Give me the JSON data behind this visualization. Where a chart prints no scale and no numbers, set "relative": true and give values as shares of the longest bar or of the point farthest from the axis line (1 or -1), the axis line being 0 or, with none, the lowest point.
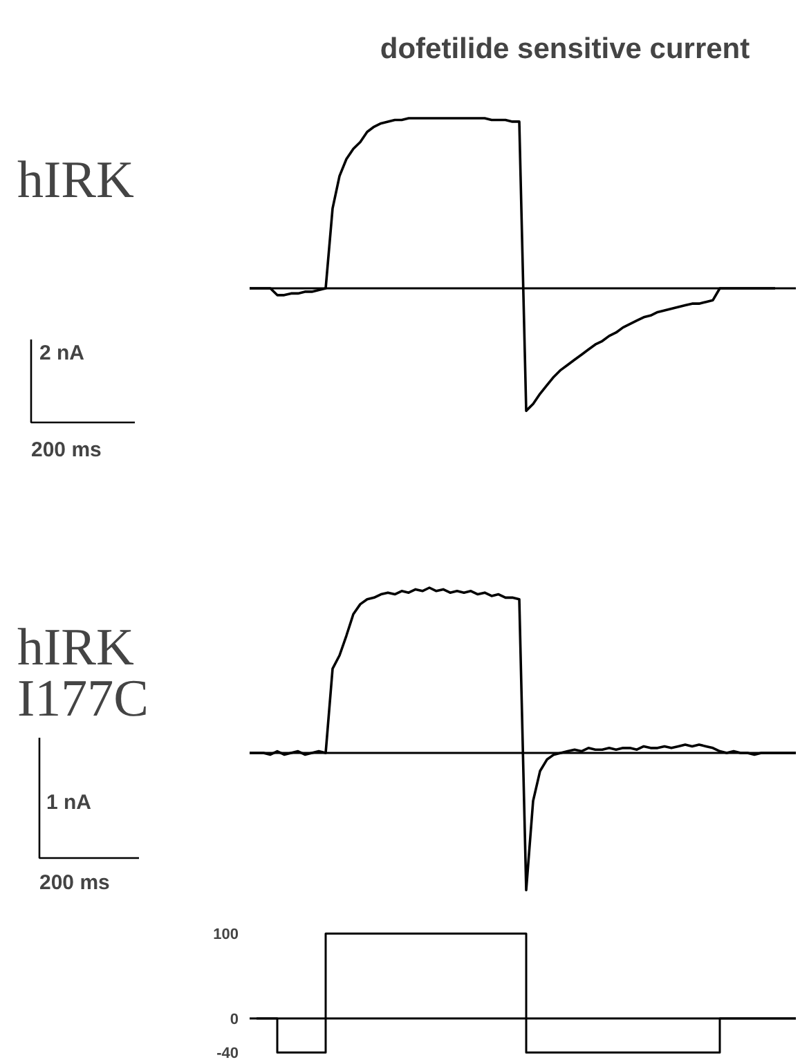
{
  "chart_data": [
    {
      "type": "line",
      "title": "dofetilide sensitive current",
      "ylabel": "hIRK",
      "relative": true,
      "annotations": [
        "2 nA",
        "200 ms"
      ],
      "categories": [
        null,
        null,
        null,
        null,
        null,
        null,
        null,
        null,
        null,
        null,
        null,
        null,
        null,
        null,
        null,
        null,
        null,
        null,
        null,
        null,
        null,
        null,
        null,
        null,
        null,
        null,
        null,
        null,
        null,
        null,
        null,
        null,
        null,
        null,
        null,
        null,
        null,
        null,
        null,
        null,
        null,
        null,
        null,
        null,
        null,
        null,
        null,
        null,
        null,
        null,
        null,
        null,
        null,
        null,
        null,
        null,
        null,
        null,
        null,
        null,
        null,
        null,
        null,
        null,
        null,
        null,
        null,
        null,
        null,
        null,
        null,
        null,
        null,
        null,
        null,
        null,
        null,
        null,
        null,
        null
      ],
      "series": [
        {
          "color": "#000000",
          "values": [
            0,
            0,
            0,
            0,
            -0.04,
            -0.04,
            -0.03,
            -0.03,
            -0.02,
            -0.02,
            -0.01,
            0,
            0.47,
            0.66,
            0.76,
            0.82,
            0.86,
            0.92,
            0.95,
            0.97,
            0.98,
            0.99,
            0.99,
            1.0,
            1.0,
            1.0,
            1.0,
            1.0,
            1.0,
            1.0,
            1.0,
            1.0,
            1.0,
            1.0,
            1.0,
            0.99,
            0.99,
            0.99,
            0.98,
            0.98,
            -0.72,
            -0.68,
            -0.62,
            -0.57,
            -0.52,
            -0.48,
            -0.45,
            -0.42,
            -0.39,
            -0.36,
            -0.33,
            -0.31,
            -0.28,
            -0.26,
            -0.23,
            -0.21,
            -0.19,
            -0.17,
            -0.16,
            -0.14,
            -0.13,
            -0.12,
            -0.11,
            -0.1,
            -0.09,
            -0.09,
            -0.08,
            -0.07,
            0,
            0,
            0,
            0,
            0,
            0,
            0,
            0,
            0,
            null,
            null,
            null
          ]
        }
      ]
    },
    {
      "type": "line",
      "ylabel": "hIRK I177C",
      "relative": true,
      "annotations": [
        "1 nA",
        "200 ms"
      ],
      "categories": [
        null,
        null,
        null,
        null,
        null,
        null,
        null,
        null,
        null,
        null,
        null,
        null,
        null,
        null,
        null,
        null,
        null,
        null,
        null,
        null,
        null,
        null,
        null,
        null,
        null,
        null,
        null,
        null,
        null,
        null,
        null,
        null,
        null,
        null,
        null,
        null,
        null,
        null,
        null,
        null,
        null,
        null,
        null,
        null,
        null,
        null,
        null,
        null,
        null,
        null,
        null,
        null,
        null,
        null,
        null,
        null,
        null,
        null,
        null,
        null,
        null,
        null,
        null,
        null,
        null,
        null,
        null,
        null,
        null,
        null,
        null,
        null,
        null,
        null,
        null,
        null,
        null,
        null,
        null,
        null
      ],
      "series": [
        {
          "color": "#000000",
          "values": [
            0,
            0,
            0,
            -0.01,
            0.01,
            -0.01,
            0,
            0.01,
            -0.01,
            0,
            0.01,
            0,
            0.51,
            0.59,
            0.71,
            0.84,
            0.9,
            0.93,
            0.94,
            0.96,
            0.97,
            0.96,
            0.98,
            0.97,
            0.99,
            0.98,
            1.0,
            0.98,
            0.99,
            0.97,
            0.98,
            0.97,
            0.98,
            0.96,
            0.97,
            0.95,
            0.96,
            0.94,
            0.94,
            0.93,
            -0.83,
            -0.29,
            -0.11,
            -0.04,
            -0.01,
            0,
            0.01,
            0.02,
            0.01,
            0.03,
            0.02,
            0.02,
            0.03,
            0.02,
            0.03,
            0.03,
            0.02,
            0.04,
            0.03,
            0.03,
            0.04,
            0.03,
            0.04,
            0.05,
            0.04,
            0.05,
            0.04,
            0.03,
            0.01,
            0,
            0.01,
            0,
            0,
            -0.01,
            0,
            0,
            0,
            0,
            0,
            0
          ]
        }
      ]
    },
    {
      "type": "step",
      "ylim": [
        -52,
        140
      ],
      "yticks": [
        100,
        0,
        -40
      ],
      "categories": [
        null,
        null,
        null,
        null,
        null,
        null,
        null,
        null,
        null,
        null,
        null,
        null,
        null,
        null,
        null,
        null,
        null,
        null,
        null,
        null,
        null,
        null,
        null,
        null,
        null,
        null,
        null,
        null,
        null,
        null,
        null,
        null,
        null,
        null,
        null,
        null,
        null,
        null,
        null,
        null,
        null,
        null,
        null,
        null,
        null,
        null,
        null,
        null,
        null,
        null,
        null,
        null,
        null,
        null,
        null,
        null,
        null,
        null,
        null,
        null,
        null,
        null,
        null,
        null,
        null,
        null,
        null,
        null,
        null,
        null,
        null,
        null,
        null,
        null,
        null,
        null,
        null,
        null,
        null,
        null
      ],
      "series": [
        {
          "color": "#000000",
          "values": [
            null,
            0,
            0,
            0,
            -40,
            -40,
            -40,
            -40,
            -40,
            -40,
            -40,
            100,
            100,
            100,
            100,
            100,
            100,
            100,
            100,
            100,
            100,
            100,
            100,
            100,
            100,
            100,
            100,
            100,
            100,
            100,
            100,
            100,
            100,
            100,
            100,
            100,
            100,
            100,
            100,
            100,
            -40,
            -40,
            -40,
            -40,
            -40,
            -40,
            -40,
            -40,
            -40,
            -40,
            -40,
            -40,
            -40,
            -40,
            -40,
            -40,
            -40,
            -40,
            -40,
            -40,
            -40,
            -40,
            -40,
            -40,
            -40,
            -40,
            -40,
            -40,
            0,
            0,
            0,
            0,
            0,
            0,
            0,
            0,
            0,
            0,
            0,
            0
          ]
        }
      ]
    }
  ]
}
